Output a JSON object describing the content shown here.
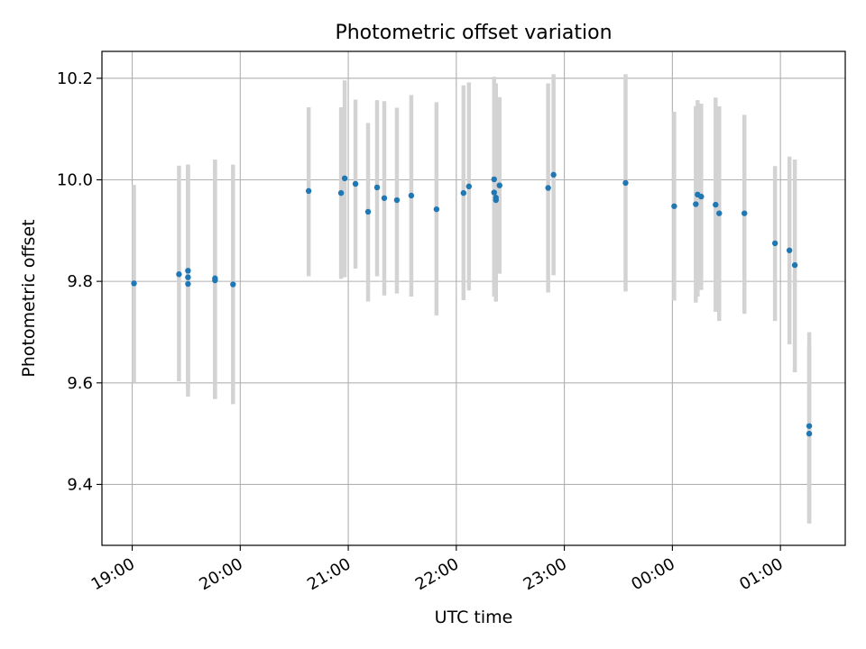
{
  "chart_data": {
    "type": "scatter",
    "title": "Photometric offset variation",
    "xlabel": "UTC time",
    "ylabel": "Photometric offset",
    "x_tick_labels": [
      "19:00",
      "20:00",
      "21:00",
      "22:00",
      "23:00",
      "00:00",
      "01:00"
    ],
    "x_tick_hours": [
      19,
      20,
      21,
      22,
      23,
      24,
      25
    ],
    "xlim_hours": [
      18.72,
      25.6
    ],
    "y_ticks": [
      9.4,
      9.6,
      9.8,
      10.0,
      10.2
    ],
    "y_tick_labels": [
      "9.4",
      "9.6",
      "9.8",
      "10.0",
      "10.2"
    ],
    "ylim": [
      9.28,
      10.253
    ],
    "grid": true,
    "point_color": "#1f77b4",
    "errorbar_color": "#d3d3d3",
    "series": [
      {
        "points": [
          {
            "t": "19:01",
            "y": 9.796,
            "lo": 9.6,
            "hi": 9.99
          },
          {
            "t": "19:26",
            "y": 9.814,
            "lo": 9.603,
            "hi": 10.028
          },
          {
            "t": "19:31",
            "y": 9.821,
            "lo": 9.61,
            "hi": 10.03
          },
          {
            "t": "19:31",
            "y": 9.808,
            "lo": 9.588,
            "hi": 10.025
          },
          {
            "t": "19:31",
            "y": 9.795,
            "lo": 9.573,
            "hi": 10.03
          },
          {
            "t": "19:46",
            "y": 9.806,
            "lo": 9.568,
            "hi": 10.04
          },
          {
            "t": "19:46",
            "y": 9.802,
            "lo": 9.57,
            "hi": 10.035
          },
          {
            "t": "19:56",
            "y": 9.794,
            "lo": 9.558,
            "hi": 10.03
          },
          {
            "t": "20:38",
            "y": 9.978,
            "lo": 9.81,
            "hi": 10.143
          },
          {
            "t": "20:56",
            "y": 9.974,
            "lo": 9.805,
            "hi": 10.143
          },
          {
            "t": "20:58",
            "y": 10.003,
            "lo": 9.808,
            "hi": 10.196
          },
          {
            "t": "21:04",
            "y": 9.992,
            "lo": 9.825,
            "hi": 10.158
          },
          {
            "t": "21:11",
            "y": 9.937,
            "lo": 9.76,
            "hi": 10.112
          },
          {
            "t": "21:16",
            "y": 9.985,
            "lo": 9.81,
            "hi": 10.157
          },
          {
            "t": "21:20",
            "y": 9.964,
            "lo": 9.772,
            "hi": 10.155
          },
          {
            "t": "21:27",
            "y": 9.96,
            "lo": 9.776,
            "hi": 10.142
          },
          {
            "t": "21:35",
            "y": 9.969,
            "lo": 9.77,
            "hi": 10.167
          },
          {
            "t": "21:49",
            "y": 9.942,
            "lo": 9.733,
            "hi": 10.153
          },
          {
            "t": "22:04",
            "y": 9.974,
            "lo": 9.763,
            "hi": 10.186
          },
          {
            "t": "22:07",
            "y": 9.987,
            "lo": 9.782,
            "hi": 10.192
          },
          {
            "t": "22:21",
            "y": 10.001,
            "lo": 9.8,
            "hi": 10.203
          },
          {
            "t": "22:21",
            "y": 9.975,
            "lo": 9.77,
            "hi": 10.182
          },
          {
            "t": "22:22",
            "y": 9.96,
            "lo": 9.76,
            "hi": 10.165
          },
          {
            "t": "22:22",
            "y": 9.965,
            "lo": 9.768,
            "hi": 10.19
          },
          {
            "t": "22:24",
            "y": 9.989,
            "lo": 9.815,
            "hi": 10.163
          },
          {
            "t": "22:51",
            "y": 9.984,
            "lo": 9.778,
            "hi": 10.19
          },
          {
            "t": "22:54",
            "y": 10.01,
            "lo": 9.812,
            "hi": 10.208
          },
          {
            "t": "23:34",
            "y": 9.994,
            "lo": 9.78,
            "hi": 10.208
          },
          {
            "t": "00:01",
            "y": 9.948,
            "lo": 9.762,
            "hi": 10.134
          },
          {
            "t": "00:13",
            "y": 9.952,
            "lo": 9.758,
            "hi": 10.145
          },
          {
            "t": "00:14",
            "y": 9.971,
            "lo": 9.77,
            "hi": 10.157
          },
          {
            "t": "00:16",
            "y": 9.967,
            "lo": 9.783,
            "hi": 10.15
          },
          {
            "t": "00:24",
            "y": 9.951,
            "lo": 9.74,
            "hi": 10.162
          },
          {
            "t": "00:26",
            "y": 9.934,
            "lo": 9.722,
            "hi": 10.145
          },
          {
            "t": "00:40",
            "y": 9.934,
            "lo": 9.736,
            "hi": 10.128
          },
          {
            "t": "00:57",
            "y": 9.875,
            "lo": 9.722,
            "hi": 10.027
          },
          {
            "t": "01:05",
            "y": 9.861,
            "lo": 9.676,
            "hi": 10.046
          },
          {
            "t": "01:08",
            "y": 9.832,
            "lo": 9.621,
            "hi": 10.04
          },
          {
            "t": "01:16",
            "y": 9.515,
            "lo": 9.323,
            "hi": 9.7
          },
          {
            "t": "01:16",
            "y": 9.5,
            "lo": 9.323,
            "hi": 9.677
          }
        ]
      }
    ]
  }
}
